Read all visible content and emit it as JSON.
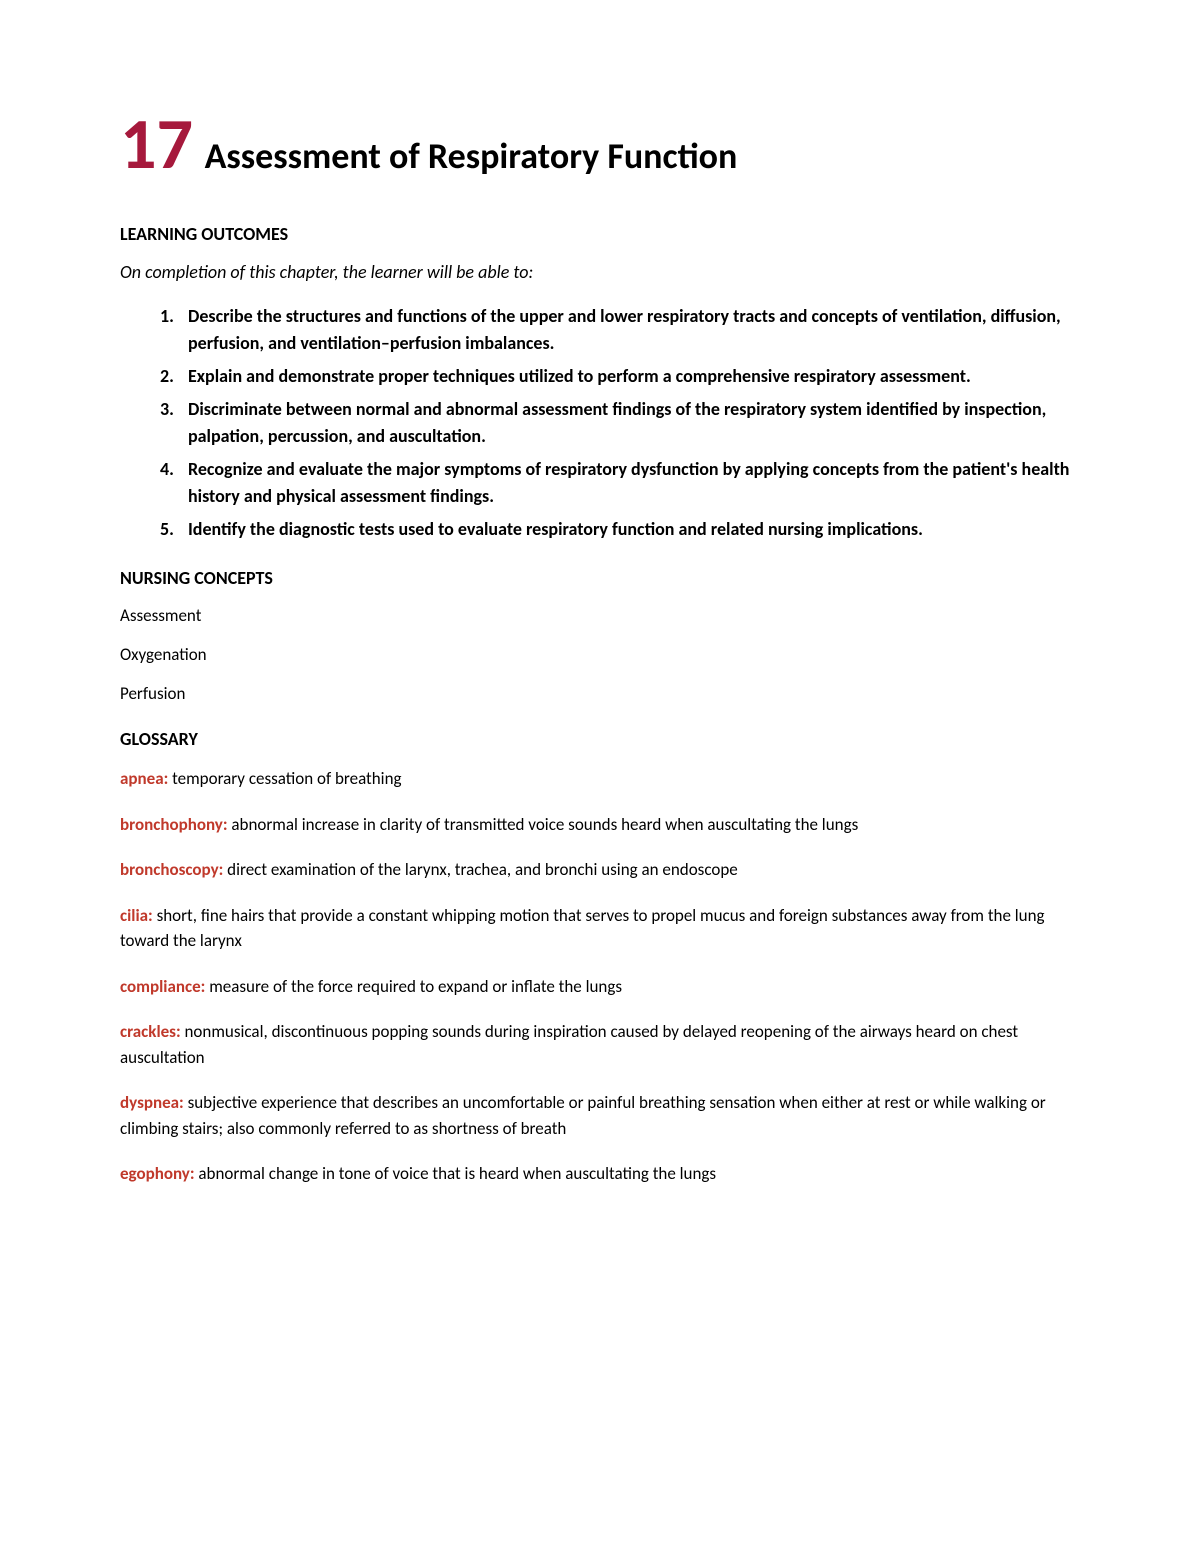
{
  "chapter": {
    "number": "17",
    "title": "Assessment of Respiratory Function"
  },
  "learning_outcomes": {
    "heading": "LEARNING OUTCOMES",
    "intro": "On completion of this chapter, the learner will be able to:",
    "items": [
      "Describe the structures and functions of the upper and lower respiratory tracts and concepts of ventilation, diffusion, perfusion, and ventilation–perfusion imbalances.",
      "Explain and demonstrate proper techniques utilized to perform a comprehensive respiratory assessment.",
      "Discriminate between normal and abnormal assessment findings of the respiratory system identified by inspection, palpation, percussion, and auscultation.",
      "Recognize and evaluate the major symptoms of respiratory dysfunction by applying concepts from the patient's health history and physical assessment findings.",
      "Identify the diagnostic tests used to evaluate respiratory function and related nursing implications."
    ]
  },
  "nursing_concepts": {
    "heading": "NURSING CONCEPTS",
    "items": [
      "Assessment",
      "Oxygenation",
      "Perfusion"
    ]
  },
  "glossary": {
    "heading": "GLOSSARY",
    "entries": [
      {
        "term": "apnea:",
        "definition": " temporary cessation of breathing"
      },
      {
        "term": "bronchophony:",
        "definition": " abnormal increase in clarity of transmitted voice sounds heard when auscultating the lungs"
      },
      {
        "term": "bronchoscopy:",
        "definition": " direct examination of the larynx, trachea, and bronchi using an endoscope"
      },
      {
        "term": "cilia:",
        "definition": " short, fine hairs that provide a constant whipping motion that serves to propel mucus and foreign substances away from the lung toward the larynx"
      },
      {
        "term": "compliance:",
        "definition": " measure of the force required to expand or inflate the lungs"
      },
      {
        "term": "crackles:",
        "definition": " nonmusical, discontinuous popping sounds during inspiration caused by delayed reopening of the airways heard on chest auscultation"
      },
      {
        "term": "dyspnea:",
        "definition": " subjective experience that describes an uncomfortable or painful breathing sensation when either at rest or while walking or climbing stairs; also commonly referred to as shortness of breath"
      },
      {
        "term": "egophony:",
        "definition": " abnormal change in tone of voice that is heard when auscultating the lungs"
      }
    ]
  },
  "colors": {
    "chapter_number": "#a6193c",
    "glossary_term": "#c0392b",
    "text": "#000000",
    "background": "#ffffff"
  },
  "typography": {
    "chapter_number_size": 72,
    "chapter_title_size": 36,
    "section_heading_size": 18,
    "body_size": 17,
    "outcomes_size": 18,
    "font_family": "Calibri"
  }
}
